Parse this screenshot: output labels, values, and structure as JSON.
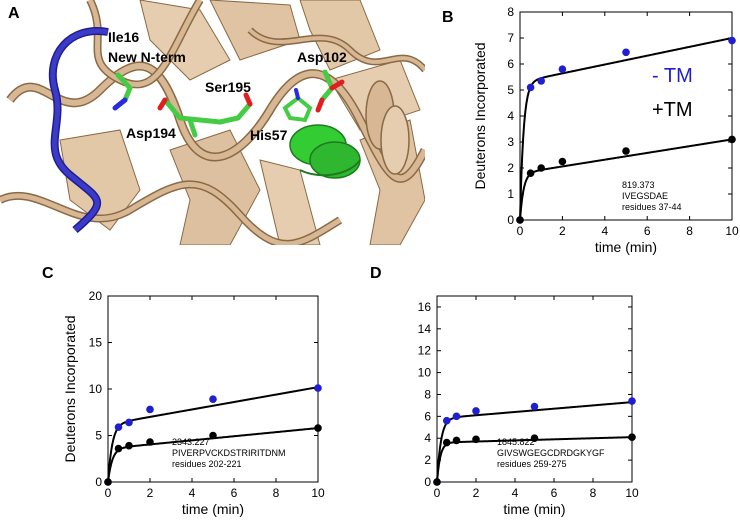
{
  "panels": {
    "A": {
      "letter": "A",
      "residue_labels": [
        "Ile16",
        "New N-term",
        "Ser195",
        "Asp102",
        "Asp194",
        "His57"
      ],
      "colors": {
        "background": "#ffffff",
        "ribbon": "#d8b894",
        "ribbon_dark": "#a88860",
        "loop_blue": "#3b3bc8",
        "helix_green": "#33cc33",
        "stick_green": "#44cc44",
        "oxygen": "#e02020",
        "nitrogen": "#2a2ae0"
      }
    },
    "B": {
      "letter": "B",
      "legend": [
        "- TM",
        "+TM"
      ],
      "annotation": [
        "819.373",
        "IVEGSDAE",
        "residues 37-44"
      ]
    },
    "C": {
      "letter": "C",
      "annotation": [
        "2343.227",
        "PIVERPVCKDSTRIRITDNM",
        "residues 202-221"
      ]
    },
    "D": {
      "letter": "D",
      "annotation": [
        "1845.822",
        "GIVSWGEGCDRDGKYGF",
        "residues 259-275"
      ]
    }
  },
  "chart_data": [
    {
      "type": "scatter",
      "panel": "B",
      "xlabel": "time (min)",
      "ylabel": "Deuterons Incorporated",
      "xlim": [
        0,
        10
      ],
      "ylim": [
        0,
        8
      ],
      "xticks": [
        0,
        2,
        4,
        6,
        8,
        10
      ],
      "yticks": [
        0,
        1,
        2,
        3,
        4,
        5,
        6,
        7,
        8
      ],
      "grid": false,
      "series": [
        {
          "name": "- TM",
          "color": "#1f1fd0",
          "x": [
            0,
            0.5,
            1,
            2,
            5,
            10
          ],
          "y": [
            0,
            5.1,
            5.35,
            5.8,
            6.45,
            6.9
          ]
        },
        {
          "name": "+TM",
          "color": "#000000",
          "x": [
            0,
            0.5,
            1,
            2,
            5,
            10
          ],
          "y": [
            0,
            1.8,
            2.0,
            2.25,
            2.65,
            3.1
          ]
        }
      ],
      "fits": [
        {
          "A": 5.3,
          "k": 6,
          "m": 0.17
        },
        {
          "A": 1.8,
          "k": 6,
          "m": 0.13
        }
      ]
    },
    {
      "type": "scatter",
      "panel": "C",
      "xlabel": "time (min)",
      "ylabel": "Deuterons Incorporated",
      "xlim": [
        0,
        10
      ],
      "ylim": [
        0,
        20
      ],
      "xticks": [
        0,
        2,
        4,
        6,
        8,
        10
      ],
      "yticks": [
        0,
        5,
        10,
        15,
        20
      ],
      "grid": false,
      "series": [
        {
          "name": "",
          "color": "#1f1fd0",
          "x": [
            0,
            0.5,
            1,
            2,
            5,
            10
          ],
          "y": [
            0,
            5.9,
            6.4,
            7.8,
            8.9,
            10.1
          ]
        },
        {
          "name": "",
          "color": "#000000",
          "x": [
            0,
            0.5,
            1,
            2,
            5,
            10
          ],
          "y": [
            0,
            3.6,
            3.9,
            4.3,
            5.0,
            5.8
          ]
        }
      ],
      "fits": [
        {
          "A": 6.2,
          "k": 5,
          "m": 0.4
        },
        {
          "A": 3.6,
          "k": 5,
          "m": 0.22
        }
      ]
    },
    {
      "type": "scatter",
      "panel": "D",
      "xlabel": "time (min)",
      "ylabel": "",
      "xlim": [
        0,
        10
      ],
      "ylim": [
        0,
        17
      ],
      "xticks": [
        0,
        2,
        4,
        6,
        8,
        10
      ],
      "yticks": [
        0,
        2,
        4,
        6,
        8,
        10,
        12,
        14,
        16
      ],
      "grid": false,
      "series": [
        {
          "name": "",
          "color": "#1f1fd0",
          "x": [
            0,
            0.5,
            1,
            2,
            5,
            10
          ],
          "y": [
            0,
            5.6,
            6.0,
            6.5,
            6.9,
            7.4
          ]
        },
        {
          "name": "",
          "color": "#000000",
          "x": [
            0,
            0.5,
            1,
            2,
            5,
            10
          ],
          "y": [
            0,
            3.6,
            3.8,
            3.9,
            4.0,
            4.1
          ]
        }
      ],
      "fits": [
        {
          "A": 5.8,
          "k": 5,
          "m": 0.15
        },
        {
          "A": 3.6,
          "k": 6,
          "m": 0.05
        }
      ]
    }
  ]
}
